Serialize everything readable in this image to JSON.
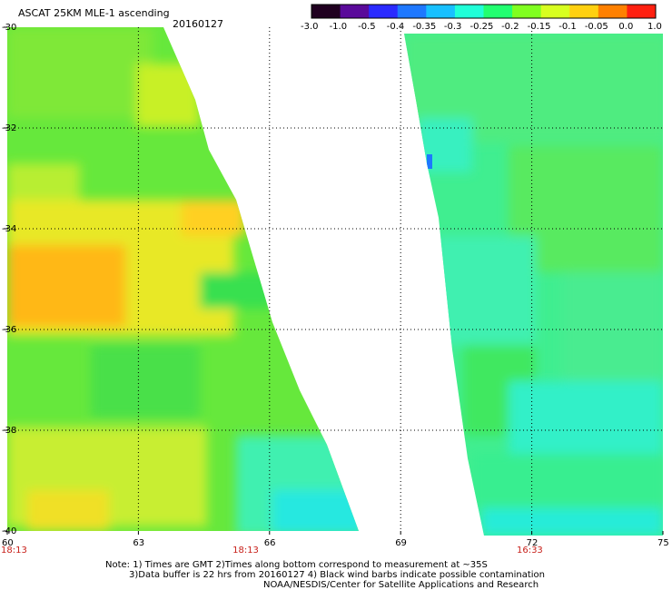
{
  "header": {
    "title": "ASCAT 25KM MLE-1 ascending",
    "date": "20160127"
  },
  "colorbar": {
    "labels": [
      "-3.0",
      "-1.0",
      "-0.5",
      "-0.4",
      "-0.35",
      "-0.3",
      "-0.25",
      "-0.2",
      "-0.15",
      "-0.1",
      "-0.05",
      "0.0",
      "1.0"
    ],
    "colors": [
      "#200020",
      "#5a0a9a",
      "#2a2aff",
      "#1e78ff",
      "#18c0ff",
      "#20ffd8",
      "#22ff70",
      "#80ff20",
      "#d8ff20",
      "#ffd010",
      "#ff8000",
      "#ff2010"
    ]
  },
  "map": {
    "lat_labels": [
      "-30",
      "-32",
      "-34",
      "-36",
      "-38",
      "-40"
    ],
    "lon_labels": [
      "60",
      "63",
      "66",
      "69",
      "72",
      "75"
    ],
    "lat_range": [
      -40,
      -30
    ],
    "lon_range": [
      60,
      75
    ],
    "grid": "dotted",
    "time_labels": [
      {
        "text": "18:13",
        "lon": 60
      },
      {
        "text": "18:13",
        "lon": 65.3
      },
      {
        "text": "16:33",
        "lon": 71.8
      }
    ]
  },
  "notes": {
    "line1": "Note: 1) Times are GMT 2)Times along bottom correspond to measurement at ~35S",
    "line2": "3)Data buffer is 22 hrs from 20160127 4) Black wind barbs indicate possible contamination",
    "line3": "NOAA/NESDIS/Center for Satellite Applications and Research"
  }
}
